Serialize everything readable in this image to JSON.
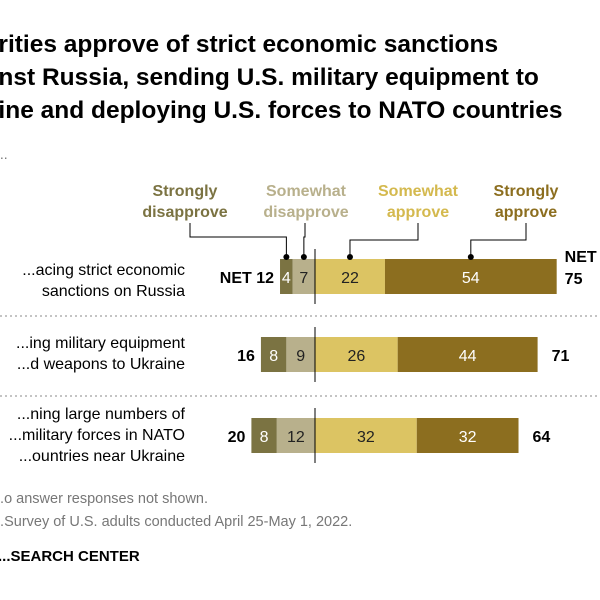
{
  "title": "...rities approve of strict economic sanctions\n...nst Russia, sending U.S. military equipment to\n...ine and deploying U.S. forces to NATO countries",
  "subtitle": "...",
  "chart_data": {
    "type": "bar",
    "orientation": "horizontal-diverging",
    "categories": [
      "...acing strict economic\nsanctions on Russia",
      "...ing military equipment\n...d weapons to Ukraine",
      "...ning large numbers of\n...military forces in NATO\n...ountries near Ukraine"
    ],
    "series": [
      {
        "name": "Strongly\ndisapprove",
        "values": [
          4,
          8,
          8
        ],
        "color": "#7b7342"
      },
      {
        "name": "Somewhat\ndisapprove",
        "values": [
          7,
          9,
          12
        ],
        "color": "#b8b08c"
      },
      {
        "name": "Somewhat\napprove",
        "values": [
          22,
          26,
          32
        ],
        "color": "#dcc463"
      },
      {
        "name": "Strongly\napprove",
        "values": [
          54,
          44,
          32
        ],
        "color": "#8c6e1f"
      }
    ],
    "net_disapprove": [
      "NET 12",
      "16",
      "20"
    ],
    "net_approve": [
      "NET\n75",
      "71",
      "64"
    ]
  },
  "notes": [
    "...o answer responses not shown.",
    "...Survey of U.S. adults conducted April 25-May 1, 2022."
  ],
  "brand": "...SEARCH CENTER"
}
